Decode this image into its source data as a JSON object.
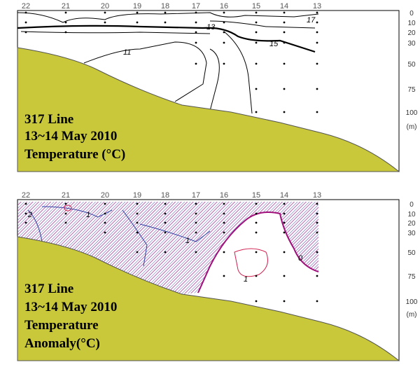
{
  "panels": [
    {
      "stations": [
        "22",
        "21",
        "20",
        "19",
        "18",
        "17",
        "16",
        "15",
        "14",
        "13"
      ],
      "depths": [
        "0",
        "10",
        "20",
        "30",
        "50",
        "75",
        "100"
      ],
      "unit": "(m)",
      "title_lines": [
        "317 Line",
        "13~14 May 2010",
        "Temperature (°C)"
      ],
      "contour_labels": [
        "17",
        "13",
        "15",
        "11"
      ]
    },
    {
      "stations": [
        "22",
        "21",
        "20",
        "19",
        "18",
        "17",
        "16",
        "15",
        "14",
        "13"
      ],
      "depths": [
        "0",
        "10",
        "20",
        "30",
        "50",
        "75",
        "100"
      ],
      "unit": "(m)",
      "title_lines": [
        "317 Line",
        "13~14 May 2010",
        "Temperature",
        "Anomaly(°C)"
      ],
      "contour_labels": [
        "2",
        "1",
        "1",
        "0",
        "1"
      ]
    }
  ]
}
